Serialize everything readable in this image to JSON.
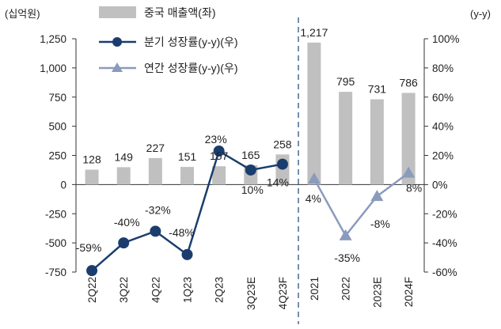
{
  "chart_data": {
    "type": "bar+line",
    "left_unit": "(십억원)",
    "right_unit": "(y-y)",
    "left_axis": {
      "min": -750,
      "max": 1250,
      "step": 250,
      "ticks": [
        "-750",
        "-500",
        "-250",
        "0",
        "250",
        "500",
        "750",
        "1,000",
        "1,250"
      ]
    },
    "right_axis": {
      "min": -60,
      "max": 100,
      "step": 20,
      "ticks": [
        "-60%",
        "-40%",
        "-20%",
        "0%",
        "20%",
        "40%",
        "60%",
        "80%",
        "100%"
      ]
    },
    "legend": {
      "bar": "중국 매출액(좌)",
      "quarterly": "분기 성장률(y-y)(우)",
      "annual": "연간 성장률(y-y)(우)"
    },
    "colors": {
      "bar": "#c0c0c0",
      "quarterly": "#1a3d6e",
      "annual": "#8a9bbd",
      "divider": "#4a6a8f"
    },
    "quarterly": {
      "categories": [
        "2Q22",
        "3Q22",
        "4Q22",
        "1Q23",
        "2Q23",
        "3Q23E",
        "4Q23F"
      ],
      "sales": [
        128,
        149,
        227,
        151,
        157,
        165,
        258
      ],
      "sales_labels": [
        "128",
        "149",
        "227",
        "151",
        "157",
        "165",
        "258"
      ],
      "growth": [
        -59,
        -40,
        -32,
        -48,
        23,
        10,
        14
      ],
      "growth_labels": [
        "-59%",
        "-40%",
        "-32%",
        "-48%",
        "23%",
        "10%",
        "14%"
      ]
    },
    "annual": {
      "categories": [
        "2021",
        "2022",
        "2023E",
        "2024F"
      ],
      "sales": [
        1217,
        795,
        731,
        786
      ],
      "sales_labels": [
        "1,217",
        "795",
        "731",
        "786"
      ],
      "growth": [
        4,
        -35,
        -8,
        8
      ],
      "growth_labels": [
        "4%",
        "-35%",
        "-8%",
        "8%"
      ]
    }
  }
}
